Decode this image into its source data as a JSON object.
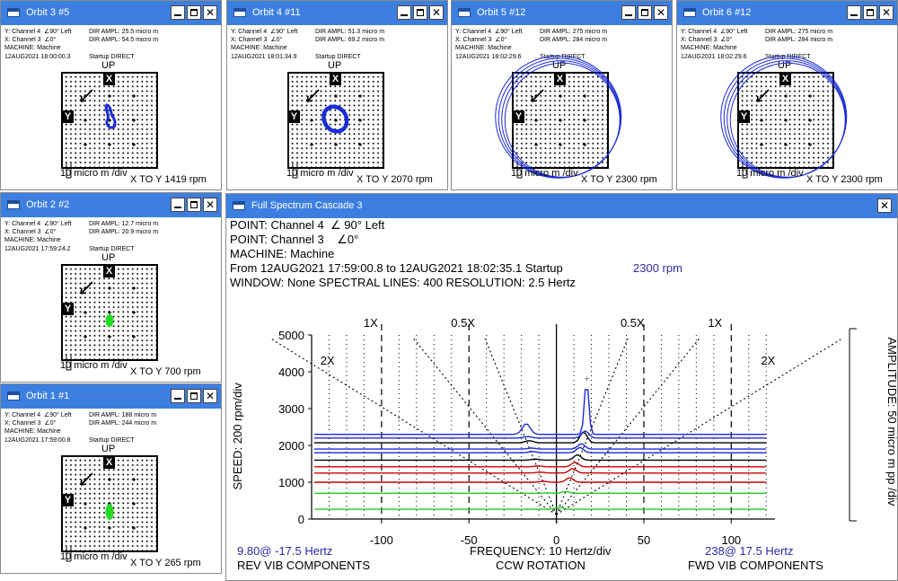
{
  "orbits": [
    {
      "title": "Orbit 3 #5",
      "y_line": "Y: Channel 4",
      "x_line": "X: Channel 3",
      "y_angle": "90° Left",
      "x_angle": "0°",
      "dir_y": "DIR AMPL: 25.5 micro m",
      "dir_x": "DIR AMPL: 54.5 micro m",
      "machine": "MACHINE: Machine",
      "time": "12AUG2021  18:00:00.3",
      "mode": "Startup DIRECT",
      "up": "UP",
      "ylbl": "Y",
      "xlbl": "X",
      "scale": "10 micro m /div",
      "rpm": "X TO Y 1419 rpm",
      "trace_color": "#1a2bd6",
      "shape": "small"
    },
    {
      "title": "Orbit 4 #11",
      "y_line": "Y: Channel 4",
      "x_line": "X: Channel 3",
      "y_angle": "90° Left",
      "x_angle": "0°",
      "dir_y": "DIR AMPL: 51.3 micro m",
      "dir_x": "DIR AMPL: 69.2 micro m",
      "machine": "MACHINE: Machine",
      "time": "12AUG2021  18:01:34.9",
      "mode": "Startup DIRECT",
      "up": "UP",
      "ylbl": "Y",
      "xlbl": "X",
      "scale": "10 micro m /div",
      "rpm": "X TO Y 2070 rpm",
      "trace_color": "#1a2bd6",
      "shape": "medium"
    },
    {
      "title": "Orbit 5 #12",
      "y_line": "Y: Channel 4",
      "x_line": "X: Channel 3",
      "y_angle": "90° Left",
      "x_angle": "0°",
      "dir_y": "DIR AMPL: 275 micro m",
      "dir_x": "DIR AMPL: 284 micro m",
      "machine": "MACHINE: Machine",
      "time": "12AUG2021  18:02:29.6",
      "mode": "Startup DIRECT",
      "up": "UP",
      "ylbl": "Y",
      "xlbl": "X",
      "scale": "10 micro m /div",
      "rpm": "X TO Y 2300 rpm",
      "trace_color": "#1a2bd6",
      "shape": "large"
    },
    {
      "title": "Orbit 6 #12",
      "y_line": "Y: Channel 4",
      "x_line": "X: Channel 3",
      "y_angle": "90° Left",
      "x_angle": "0°",
      "dir_y": "DIR AMPL: 275 micro m",
      "dir_x": "DIR AMPL: 284 micro m",
      "machine": "MACHINE: Machine",
      "time": "12AUG2021  18:02:29.6",
      "mode": "Startup DIRECT",
      "up": "UP",
      "ylbl": "Y",
      "xlbl": "X",
      "scale": "10 micro m /div",
      "rpm": "X TO Y 2300 rpm",
      "trace_color": "#1a2bd6",
      "shape": "large"
    },
    {
      "title": "Orbit 2 #2",
      "y_line": "Y: Channel 4",
      "x_line": "X: Channel 3",
      "y_angle": "90° Left",
      "x_angle": "0°",
      "dir_y": "DIR AMPL: 12.7 micro m",
      "dir_x": "DIR AMPL: 20.9 micro m",
      "machine": "MACHINE: Machine",
      "time": "12AUG2021  17:59:24.2",
      "mode": "Startup DIRECT",
      "up": "UP",
      "ylbl": "Y",
      "xlbl": "X",
      "scale": "10 micro m /div",
      "rpm": "X TO Y 700 rpm",
      "trace_color": "#22dd22",
      "shape": "dot"
    },
    {
      "title": "Orbit 1 #1",
      "y_line": "Y: Channel 4",
      "x_line": "X: Channel 3",
      "y_angle": "90° Left",
      "x_angle": "0°",
      "dir_y": "DIR AMPL: 188 micro m",
      "dir_x": "DIR AMPL: 244 micro m",
      "machine": "MACHINE: Machine",
      "time": "12AUG2021  17:59:00.8",
      "mode": "Startup DIRECT",
      "up": "UP",
      "ylbl": "Y",
      "xlbl": "X",
      "scale": "10 micro m /div",
      "rpm": "X TO Y 265 rpm",
      "trace_color": "#22dd22",
      "shape": "dot"
    }
  ],
  "spectrum": {
    "title": "Full Spectrum Cascade 3",
    "point1": "POINT: Channel 4",
    "point1_angle": "90° Left",
    "point2": "POINT: Channel 3",
    "point2_angle": "0°",
    "machine": "MACHINE: Machine",
    "range": "From 12AUG2021 17:59:00.8 to 12AUG2021  18:02:35.1 Startup",
    "rpm": "2300 rpm",
    "window": "WINDOW: None  SPECTRAL LINES: 400  RESOLUTION: 2.5 Hertz",
    "rev_peak": "9.80@ -17.5 Hertz",
    "fwd_peak": "238@ 17.5 Hertz",
    "rev_label": "REV VIB COMPONENTS",
    "fwd_label": "FWD VIB COMPONENTS",
    "freq_label": "FREQUENCY: 10 Hertz/div",
    "rotation": "CCW ROTATION",
    "speed_label": "SPEED: 200 rpm/div",
    "amp_label": "AMPLITUDE: 50 micro m pp /div",
    "order_labels": [
      "1X",
      "0.5X",
      "0.5X",
      "1X",
      "2X",
      "2X"
    ]
  },
  "chart_data": {
    "type": "line",
    "title": "Full Spectrum Cascade 3",
    "xlabel": "FREQUENCY: 10 Hertz/div",
    "ylabel": "SPEED: 200 rpm/div",
    "xlim": [
      -140,
      125
    ],
    "ylim": [
      0,
      5000
    ],
    "x_ticks": [
      -100,
      -50,
      0,
      50,
      100
    ],
    "y_ticks": [
      0,
      1000,
      2000,
      3000,
      4000,
      5000
    ],
    "grid": true,
    "peak_frequency_hz": 17.5,
    "peak_rpm": 2300,
    "series": [
      {
        "rpm": 265,
        "color": "#22cc22"
      },
      {
        "rpm": 700,
        "color": "#22cc22"
      },
      {
        "rpm": 1000,
        "color": "#cc0000"
      },
      {
        "rpm": 1250,
        "color": "#cc0000"
      },
      {
        "rpm": 1419,
        "color": "#cc0000"
      },
      {
        "rpm": 1600,
        "color": "#000000"
      },
      {
        "rpm": 1800,
        "color": "#1a2bd6"
      },
      {
        "rpm": 1900,
        "color": "#1a2bd6"
      },
      {
        "rpm": 2070,
        "color": "#000000"
      },
      {
        "rpm": 2200,
        "color": "#1a2bd6"
      },
      {
        "rpm": 2300,
        "color": "#1a2bd6"
      }
    ]
  }
}
